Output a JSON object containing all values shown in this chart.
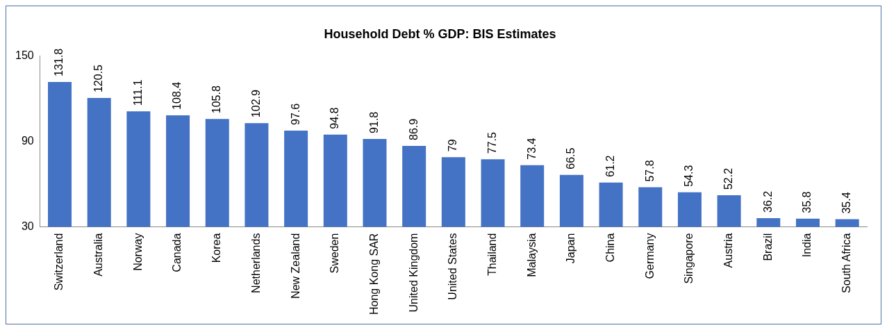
{
  "chart_data": {
    "type": "bar",
    "title": "Household Debt % GDP: BIS Estimates",
    "categories": [
      "Switzerland",
      "Australia",
      "Norway",
      "Canada",
      "Korea",
      "Netherlands",
      "New Zealand",
      "Sweden",
      "Hong Kong SAR",
      "United Kingdom",
      "United States",
      "Thailand",
      "Malaysia",
      "Japan",
      "China",
      "Germany",
      "Singapore",
      "Austria",
      "Brazil",
      "India",
      "South Africa"
    ],
    "values": [
      131.8,
      120.5,
      111.1,
      108.4,
      105.8,
      102.9,
      97.6,
      94.8,
      91.8,
      86.9,
      79,
      77.5,
      73.4,
      66.5,
      61.2,
      57.8,
      54.3,
      52.2,
      36.2,
      35.8,
      35.4
    ],
    "color": "#4472c4",
    "ylim": [
      30,
      150
    ],
    "yticks": [
      30,
      90,
      150
    ],
    "grid": false,
    "legend": false,
    "data_labels": true
  }
}
